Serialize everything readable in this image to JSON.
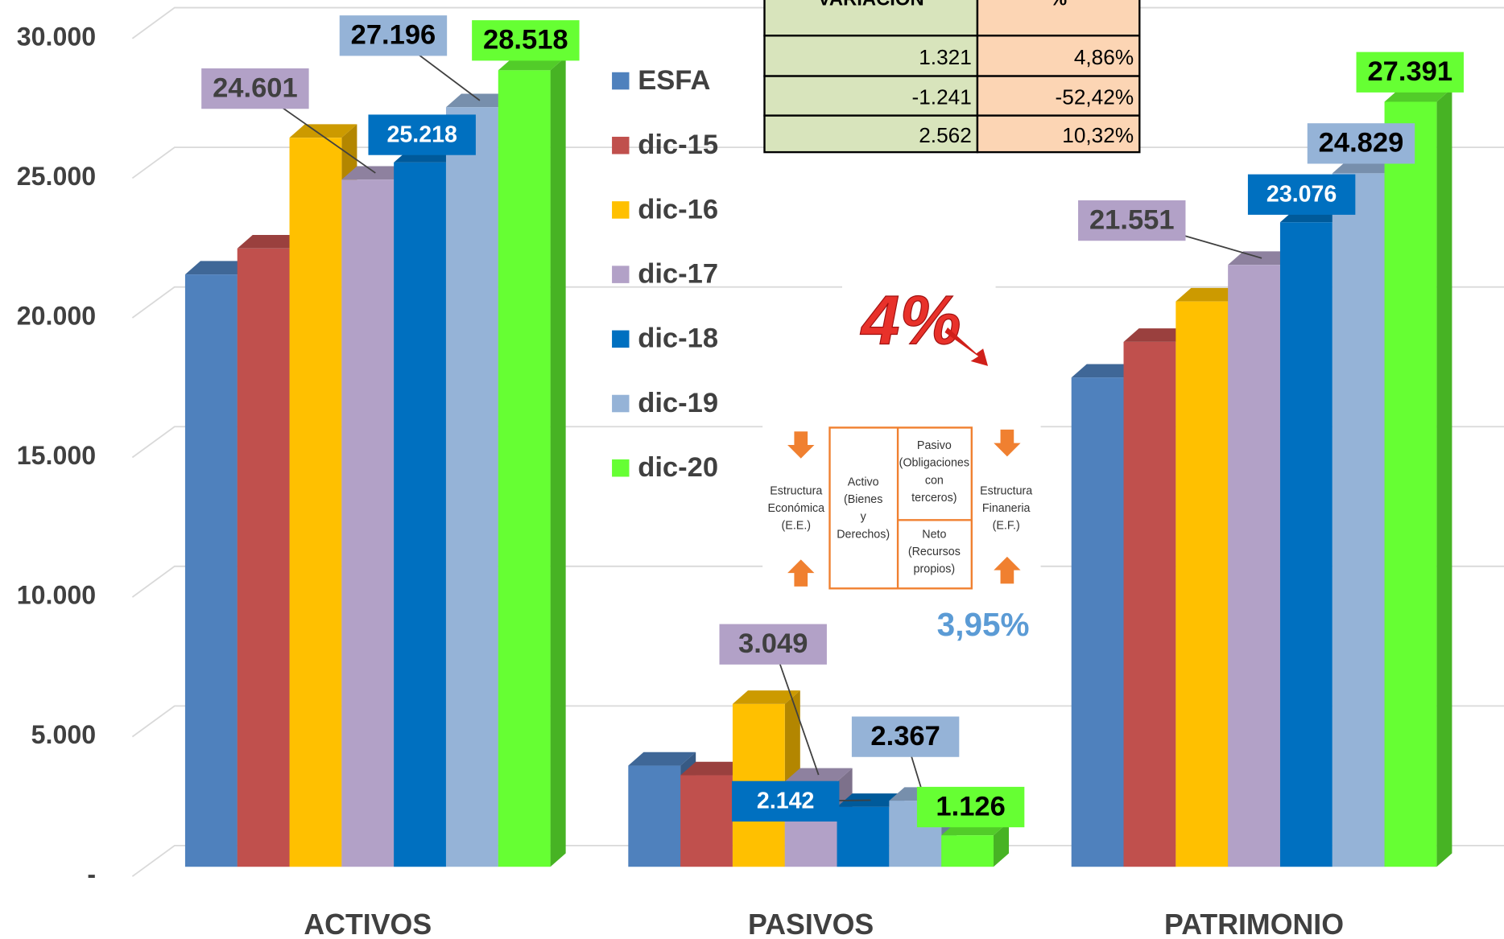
{
  "chart_data": {
    "type": "bar3d",
    "categories": [
      "ACTIVOS",
      "PASIVOS",
      "PATRIMONIO"
    ],
    "series": [
      {
        "name": "ESFA",
        "color": "#4f81bd",
        "values": [
          21207,
          3621,
          17517
        ]
      },
      {
        "name": "dic-15",
        "color": "#c0504d",
        "values": [
          22138,
          3276,
          18793
        ]
      },
      {
        "name": "dic-16",
        "color": "#ffc000",
        "values": [
          26103,
          5828,
          20241
        ]
      },
      {
        "name": "dic-17",
        "color": "#b2a1c7",
        "values": [
          24601,
          3049,
          21551
        ],
        "value_labels": [
          "24.601",
          "3.049",
          "21.551"
        ]
      },
      {
        "name": "dic-18",
        "color": "#0070c0",
        "values": [
          25218,
          2142,
          23076
        ],
        "value_labels": [
          "25.218",
          "2.142",
          "23.076"
        ]
      },
      {
        "name": "dic-19",
        "color": "#95b3d7",
        "values": [
          27196,
          2367,
          24829
        ],
        "value_labels": [
          "27.196",
          "2.367",
          "24.829"
        ]
      },
      {
        "name": "dic-20",
        "color": "#66ff33",
        "values": [
          28518,
          1126,
          27391
        ],
        "value_labels": [
          "28.518",
          "1.126",
          "27.391"
        ]
      }
    ],
    "ylim": [
      0,
      30000
    ],
    "yticks": [
      {
        "value": 0,
        "label": "-"
      },
      {
        "value": 5000,
        "label": "5.000"
      },
      {
        "value": 10000,
        "label": "10.000"
      },
      {
        "value": 15000,
        "label": "15.000"
      },
      {
        "value": 20000,
        "label": "20.000"
      },
      {
        "value": 25000,
        "label": "25.000"
      },
      {
        "value": 30000,
        "label": "30.000"
      }
    ],
    "grid": true,
    "legend": "center",
    "annotations": [
      "4%",
      "3,95%"
    ]
  },
  "table": {
    "header": [
      "VARIACIÓN",
      "%"
    ],
    "rows": [
      [
        "1.321",
        "4,86%"
      ],
      [
        "-1.241",
        "-52,42%"
      ],
      [
        "2.562",
        "10,32%"
      ]
    ]
  },
  "diagram": {
    "left": "Estructura Económica (E.E.)",
    "activo": "Activo (Bienes y Derechos)",
    "pasivo": "Pasivo (Obligaciones con terceros)",
    "neto": "Neto (Recursos propios)",
    "right": "Estructura Finaneria (E.F.)"
  }
}
